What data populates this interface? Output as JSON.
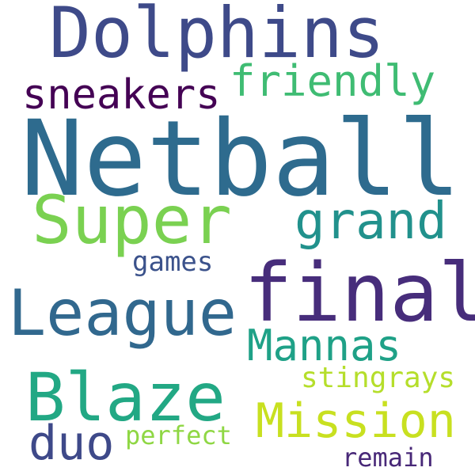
{
  "words": [
    {
      "text": "Dolphins",
      "color": "#3e4a89"
    },
    {
      "text": "Netball",
      "color": "#2e6b8e"
    },
    {
      "text": "friendly",
      "color": "#3fbc73"
    },
    {
      "text": "sneakers",
      "color": "#440154"
    },
    {
      "text": "Super",
      "color": "#7ad151"
    },
    {
      "text": "grand",
      "color": "#21918c"
    },
    {
      "text": "games",
      "color": "#3b528b"
    },
    {
      "text": "final",
      "color": "#472d7b"
    },
    {
      "text": "League",
      "color": "#31688e"
    },
    {
      "text": "Mannas",
      "color": "#1fa187"
    },
    {
      "text": "Blaze",
      "color": "#22a884"
    },
    {
      "text": "stingrays",
      "color": "#b5de2b"
    },
    {
      "text": "Mission",
      "color": "#c8e020"
    },
    {
      "text": "duo",
      "color": "#3e4989"
    },
    {
      "text": "perfect",
      "color": "#8fd744"
    },
    {
      "text": "remain",
      "color": "#482878"
    }
  ]
}
